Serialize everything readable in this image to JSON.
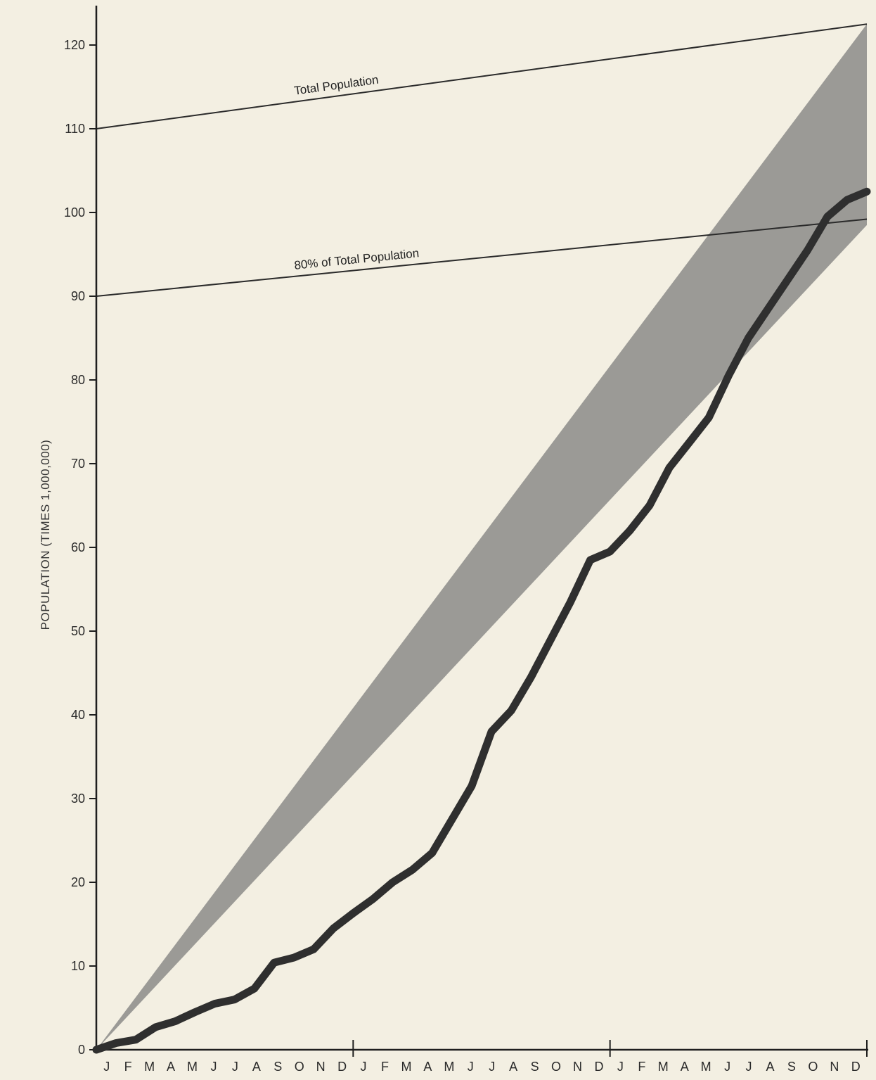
{
  "chart_data": {
    "type": "line",
    "title": "",
    "ylabel": "POPULATION (TIMES 1,000,000)",
    "xlabel": "",
    "ylim": [
      0,
      125
    ],
    "y_ticks": [
      0,
      10,
      20,
      30,
      40,
      50,
      60,
      70,
      80,
      90,
      100,
      110,
      120
    ],
    "x_month_labels": [
      "J",
      "F",
      "M",
      "A",
      "M",
      "J",
      "J",
      "A",
      "S",
      "O",
      "N",
      "D",
      "J",
      "F",
      "M",
      "A",
      "M",
      "J",
      "J",
      "A",
      "S",
      "O",
      "N",
      "D",
      "J",
      "F",
      "M",
      "A",
      "M",
      "J",
      "J",
      "A",
      "S",
      "O",
      "N",
      "D"
    ],
    "grid": false,
    "reference_lines": [
      {
        "label": "Total Population",
        "start": 110,
        "end": 122.5
      },
      {
        "label": "80% of Total Population",
        "start": 90,
        "end": 99.2
      }
    ],
    "band": {
      "upper_end": 122.5,
      "lower_end": 98.5
    },
    "series": [
      {
        "values": [
          0,
          0.8,
          1.2,
          2.7,
          3.4,
          4.5,
          5.5,
          6.0,
          7.3,
          10.4,
          11.0,
          12.0,
          14.5,
          16.3,
          18.0,
          20.0,
          21.5,
          23.5,
          27.5,
          31.5,
          38.0,
          40.5,
          44.5,
          49.0,
          53.5,
          58.5,
          59.5,
          62.0,
          65.0,
          69.5,
          72.5,
          75.5,
          80.5,
          85.0,
          88.5,
          92.0,
          95.5,
          99.5,
          101.5,
          102.5
        ]
      }
    ]
  },
  "colors": {
    "background": "#f3efe2",
    "band": "#8b8b88",
    "curve": "#2f2f2f",
    "axis": "#1e1e1e",
    "reference": "#2a2a2a"
  }
}
